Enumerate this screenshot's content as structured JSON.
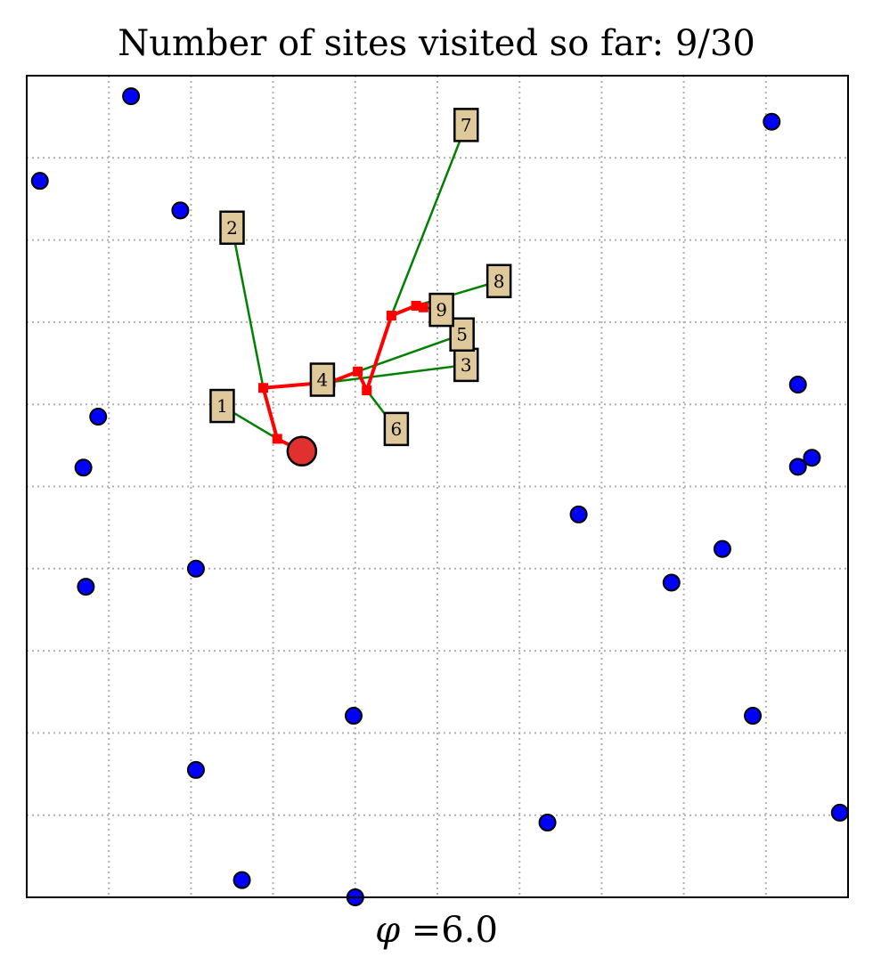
{
  "chart_data": {
    "type": "scatter",
    "title": "Number of sites visited so far: 9/30",
    "xlabel": "φ =6.0",
    "xlabel_parts": {
      "symbol": "φ",
      "rest": " =6.0"
    },
    "xlim": [
      0,
      10
    ],
    "ylim": [
      0,
      10
    ],
    "grid": true,
    "ticks_visible": false,
    "colors": {
      "site_fill": "#0000ff",
      "site_edge": "#000000",
      "path": "#ff0000",
      "start_marker": "#e03030",
      "link": "#008000",
      "box_fill": "#dfc99b",
      "grid": "#b0b0b0"
    },
    "unvisited_sites": [
      {
        "x": 1.27,
        "y": 9.75
      },
      {
        "x": 0.16,
        "y": 8.72
      },
      {
        "x": 1.87,
        "y": 8.36
      },
      {
        "x": 0.87,
        "y": 5.85
      },
      {
        "x": 0.69,
        "y": 5.23
      },
      {
        "x": 0.72,
        "y": 3.78
      },
      {
        "x": 2.06,
        "y": 4.0
      },
      {
        "x": 3.98,
        "y": 2.21
      },
      {
        "x": 2.06,
        "y": 1.55
      },
      {
        "x": 2.62,
        "y": 0.21
      },
      {
        "x": 4.0,
        "y": 0.0
      },
      {
        "x": 6.34,
        "y": 0.91
      },
      {
        "x": 6.72,
        "y": 4.66
      },
      {
        "x": 7.85,
        "y": 3.83
      },
      {
        "x": 8.47,
        "y": 4.24
      },
      {
        "x": 8.84,
        "y": 2.21
      },
      {
        "x": 9.39,
        "y": 6.24
      },
      {
        "x": 9.39,
        "y": 5.24
      },
      {
        "x": 9.56,
        "y": 5.35
      },
      {
        "x": 9.07,
        "y": 9.44
      },
      {
        "x": 9.9,
        "y": 1.03
      }
    ],
    "start": {
      "x": 3.35,
      "y": 5.43
    },
    "path": [
      {
        "x": 3.35,
        "y": 5.43
      },
      {
        "x": 3.05,
        "y": 5.58
      },
      {
        "x": 2.88,
        "y": 6.2
      },
      {
        "x": 3.7,
        "y": 6.27
      },
      {
        "x": 4.03,
        "y": 6.4
      },
      {
        "x": 4.14,
        "y": 6.17
      },
      {
        "x": 4.44,
        "y": 7.08
      },
      {
        "x": 4.74,
        "y": 7.2
      },
      {
        "x": 4.83,
        "y": 7.18
      }
    ],
    "visited_boxes": [
      {
        "label": "1",
        "x": 2.38,
        "y": 5.98,
        "anchor": {
          "x": 3.05,
          "y": 5.58
        }
      },
      {
        "label": "2",
        "x": 2.5,
        "y": 8.15,
        "anchor": {
          "x": 2.88,
          "y": 6.2
        }
      },
      {
        "label": "3",
        "x": 5.35,
        "y": 6.48,
        "anchor": {
          "x": 3.7,
          "y": 6.27
        }
      },
      {
        "label": "4",
        "x": 3.6,
        "y": 6.3,
        "anchor": {
          "x": 3.7,
          "y": 6.27
        }
      },
      {
        "label": "5",
        "x": 5.3,
        "y": 6.85,
        "anchor": {
          "x": 4.03,
          "y": 6.4
        }
      },
      {
        "label": "6",
        "x": 4.5,
        "y": 5.7,
        "anchor": {
          "x": 4.14,
          "y": 6.17
        }
      },
      {
        "label": "7",
        "x": 5.35,
        "y": 9.4,
        "anchor": {
          "x": 4.44,
          "y": 7.08
        }
      },
      {
        "label": "8",
        "x": 5.75,
        "y": 7.5,
        "anchor": {
          "x": 4.74,
          "y": 7.2
        }
      },
      {
        "label": "9",
        "x": 5.05,
        "y": 7.15,
        "anchor": {
          "x": 4.83,
          "y": 7.18
        }
      }
    ]
  }
}
